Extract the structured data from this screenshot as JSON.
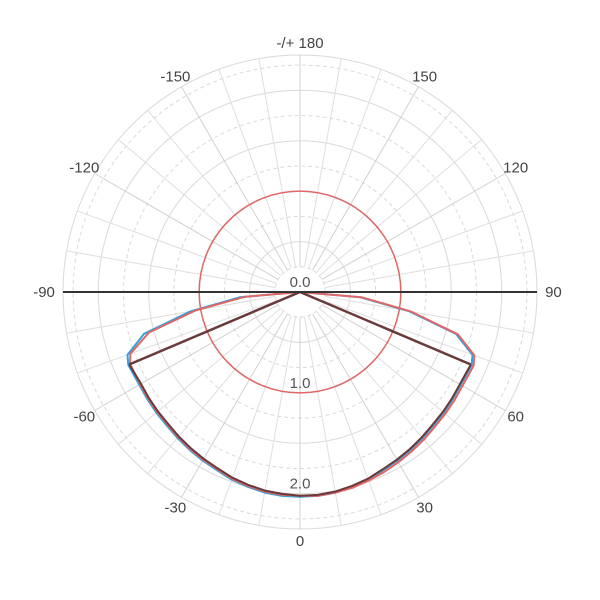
{
  "chart_data": {
    "type": "polar",
    "angle_tick_labels": [
      {
        "angle": 180,
        "label": "-/+ 180"
      },
      {
        "angle": 150,
        "label": "150"
      },
      {
        "angle": -150,
        "label": "-150"
      },
      {
        "angle": 120,
        "label": "120"
      },
      {
        "angle": -120,
        "label": "-120"
      },
      {
        "angle": 90,
        "label": "90"
      },
      {
        "angle": -90,
        "label": "-90"
      },
      {
        "angle": 60,
        "label": "60"
      },
      {
        "angle": -60,
        "label": "-60"
      },
      {
        "angle": 30,
        "label": "30"
      },
      {
        "angle": -30,
        "label": "-30"
      },
      {
        "angle": 0,
        "label": "0"
      }
    ],
    "radial_tick_labels": [
      {
        "r": 0,
        "label": "0.0"
      },
      {
        "r": 1,
        "label": "1.0"
      },
      {
        "r": 2,
        "label": "2.0"
      }
    ],
    "radial_range": [
      0,
      2.35
    ],
    "angular_range_deg": [
      -180,
      180
    ],
    "zero_direction": "bottom",
    "grid": true,
    "reference_circle": {
      "r": 1.0,
      "color": "#e06666"
    },
    "axis_line_color": "#333333",
    "series": [
      {
        "color": "#2ea3e0",
        "points": [
          [
            -90,
            0.0
          ],
          [
            -85,
            0.6
          ],
          [
            -80,
            1.1
          ],
          [
            -75,
            1.6
          ],
          [
            -70,
            1.82
          ],
          [
            -67,
            1.85
          ],
          [
            -60,
            1.84
          ],
          [
            -55,
            1.85
          ],
          [
            -50,
            1.86
          ],
          [
            -45,
            1.87
          ],
          [
            -40,
            1.89
          ],
          [
            -35,
            1.91
          ],
          [
            -30,
            1.93
          ],
          [
            -25,
            1.95
          ],
          [
            -20,
            1.98
          ],
          [
            -15,
            2.0
          ],
          [
            -10,
            2.02
          ],
          [
            -5,
            2.03
          ],
          [
            0,
            2.03
          ],
          [
            5,
            2.03
          ],
          [
            10,
            2.02
          ],
          [
            15,
            2.0
          ],
          [
            20,
            1.98
          ],
          [
            25,
            1.95
          ],
          [
            30,
            1.93
          ],
          [
            35,
            1.91
          ],
          [
            40,
            1.89
          ],
          [
            45,
            1.87
          ],
          [
            50,
            1.86
          ],
          [
            55,
            1.85
          ],
          [
            60,
            1.84
          ],
          [
            67,
            1.85
          ],
          [
            70,
            1.82
          ],
          [
            75,
            1.6
          ],
          [
            80,
            1.1
          ],
          [
            85,
            0.6
          ],
          [
            90,
            0.0
          ]
        ]
      },
      {
        "color": "#e06666",
        "points": [
          [
            -90,
            0.0
          ],
          [
            -85,
            0.55
          ],
          [
            -80,
            1.05
          ],
          [
            -75,
            1.55
          ],
          [
            -70,
            1.79
          ],
          [
            -67,
            1.83
          ],
          [
            -60,
            1.83
          ],
          [
            -55,
            1.84
          ],
          [
            -50,
            1.85
          ],
          [
            -45,
            1.86
          ],
          [
            -40,
            1.88
          ],
          [
            -35,
            1.9
          ],
          [
            -30,
            1.92
          ],
          [
            -25,
            1.94
          ],
          [
            -20,
            1.97
          ],
          [
            -15,
            1.99
          ],
          [
            -10,
            2.01
          ],
          [
            -5,
            2.02
          ],
          [
            0,
            2.02
          ],
          [
            5,
            2.03
          ],
          [
            10,
            2.02
          ],
          [
            15,
            2.01
          ],
          [
            20,
            1.99
          ],
          [
            25,
            1.97
          ],
          [
            30,
            1.95
          ],
          [
            35,
            1.93
          ],
          [
            40,
            1.91
          ],
          [
            45,
            1.89
          ],
          [
            50,
            1.88
          ],
          [
            55,
            1.87
          ],
          [
            60,
            1.86
          ],
          [
            67,
            1.87
          ],
          [
            70,
            1.84
          ],
          [
            75,
            1.62
          ],
          [
            80,
            1.12
          ],
          [
            85,
            0.62
          ],
          [
            90,
            0.0
          ]
        ]
      },
      {
        "color": "#6a3a3a",
        "points": [
          [
            -67,
            1.84
          ],
          [
            -60,
            1.82
          ],
          [
            -55,
            1.83
          ],
          [
            -50,
            1.84
          ],
          [
            -45,
            1.85
          ],
          [
            -40,
            1.87
          ],
          [
            -35,
            1.89
          ],
          [
            -30,
            1.91
          ],
          [
            -25,
            1.93
          ],
          [
            -20,
            1.96
          ],
          [
            -15,
            1.98
          ],
          [
            -10,
            2.0
          ],
          [
            -5,
            2.01
          ],
          [
            0,
            2.02
          ],
          [
            5,
            2.02
          ],
          [
            10,
            2.01
          ],
          [
            15,
            1.99
          ],
          [
            20,
            1.97
          ],
          [
            25,
            1.94
          ],
          [
            30,
            1.92
          ],
          [
            35,
            1.9
          ],
          [
            40,
            1.88
          ],
          [
            45,
            1.86
          ],
          [
            50,
            1.85
          ],
          [
            55,
            1.84
          ],
          [
            60,
            1.83
          ],
          [
            67,
            1.84
          ]
        ]
      }
    ],
    "spokes": [
      {
        "angle": -67,
        "r": 1.84,
        "color": "#6a3a3a"
      },
      {
        "angle": 67,
        "r": 1.84,
        "color": "#6a3a3a"
      }
    ]
  }
}
